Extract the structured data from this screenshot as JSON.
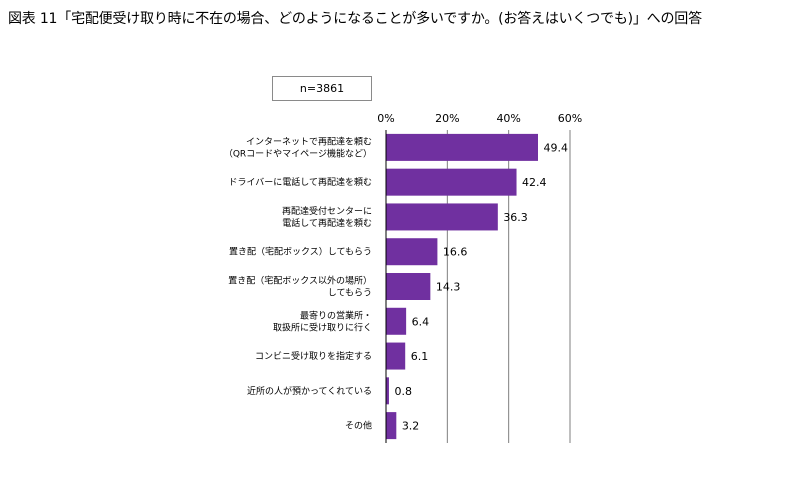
{
  "title": "図表 11「宅配便受け取り時に不在の場合、どのようになることが多いですか。(お答えはいくつでも)」への回答",
  "sample_note": "n=3861",
  "colors": {
    "bar": "#7030a0",
    "grid": "#7f7f7f",
    "axis": "#000000"
  },
  "chart_data": {
    "type": "bar",
    "orientation": "horizontal",
    "title": "図表 11「宅配便受け取り時に不在の場合、どのようになることが多いですか。(お答えはいくつでも)」への回答",
    "xlim": [
      0,
      60
    ],
    "xticks": [
      "0%",
      "20%",
      "40%",
      "60%"
    ],
    "xtick_values": [
      0,
      20,
      40,
      60
    ],
    "grid": true,
    "categories": [
      [
        "インターネットで再配達を頼む",
        "（QRコードやマイページ機能など）"
      ],
      [
        "ドライバーに電話して再配達を頼む"
      ],
      [
        "再配達受付センターに",
        "電話して再配達を頼む"
      ],
      [
        "置き配（宅配ボックス）してもらう"
      ],
      [
        "置き配（宅配ボックス以外の場所）",
        "してもらう"
      ],
      [
        "最寄りの営業所・",
        "取扱所に受け取りに行く"
      ],
      [
        "コンビニ受け取りを指定する"
      ],
      [
        "近所の人が預かってくれている"
      ],
      [
        "その他"
      ]
    ],
    "values": [
      49.4,
      42.4,
      36.3,
      16.6,
      14.3,
      6.4,
      6.1,
      0.8,
      3.2
    ],
    "value_labels": [
      "49.4",
      "42.4",
      "36.3",
      "16.6",
      "14.3",
      "6.4",
      "6.1",
      "0.8",
      "3.2"
    ]
  }
}
